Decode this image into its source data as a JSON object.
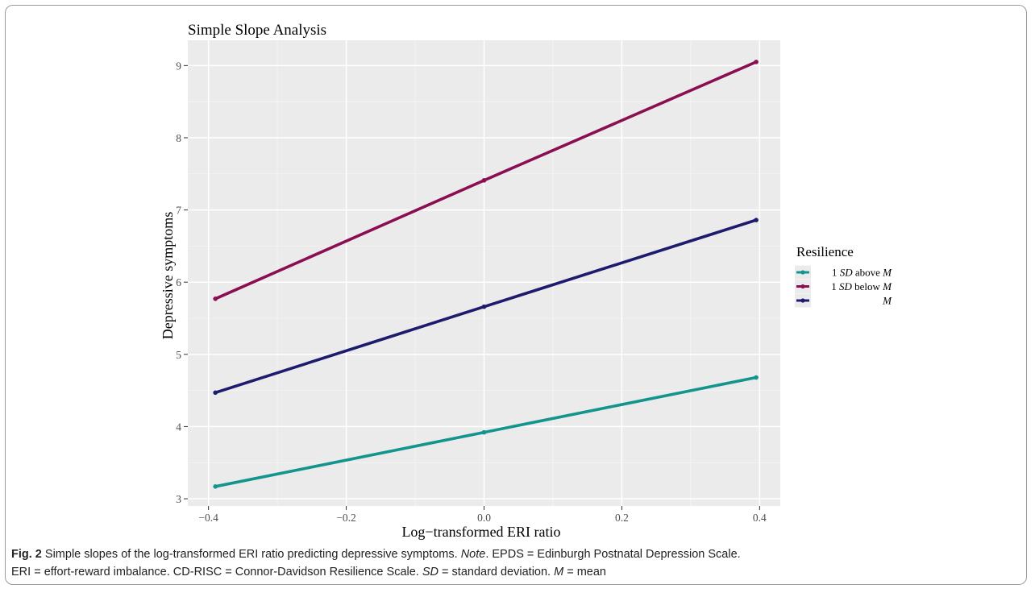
{
  "chart_data": {
    "type": "line",
    "title": "Simple Slope Analysis",
    "xlabel": "Log−transformed ERI ratio",
    "ylabel": "Depressive symptoms",
    "xlim": [
      -0.43,
      0.43
    ],
    "ylim": [
      2.9,
      9.35
    ],
    "x_ticks": [
      -0.4,
      -0.2,
      0.0,
      0.2,
      0.4
    ],
    "x_tick_labels": [
      "−0.4",
      "−0.2",
      "0.0",
      "0.2",
      "0.4"
    ],
    "y_ticks": [
      3,
      4,
      5,
      6,
      7,
      8,
      9
    ],
    "y_tick_labels": [
      "3",
      "4",
      "5",
      "6",
      "7",
      "8",
      "9"
    ],
    "x": [
      -0.39,
      0.0,
      0.395
    ],
    "grid": true,
    "legend_position": "right",
    "legend_title": "Resilience",
    "series": [
      {
        "name": "1 SD above M",
        "name_parts": [
          "1 ",
          "SD",
          " above ",
          "M"
        ],
        "color": "#14948f",
        "values": [
          3.17,
          3.92,
          4.68
        ]
      },
      {
        "name": "1 SD below M",
        "name_parts": [
          "1 ",
          "SD",
          " below ",
          "M"
        ],
        "color": "#8c0e52",
        "values": [
          5.77,
          7.41,
          9.05
        ]
      },
      {
        "name": "M",
        "name_parts": [
          "",
          "",
          "",
          "M"
        ],
        "color": "#1d1b6e",
        "values": [
          4.47,
          5.66,
          6.86
        ]
      }
    ]
  },
  "caption": {
    "fig_label": "Fig. 2",
    "part1": "Simple slopes of the log-transformed ERI ratio predicting depressive symptoms. ",
    "note": "Note",
    "part2": ". EPDS = Edinburgh Postnatal Depression Scale.",
    "part3": "ERI = effort-reward imbalance. CD-RISC = Connor-Davidson Resilience Scale. ",
    "sd": "SD",
    "part4": " = standard deviation. ",
    "m": "M",
    "part5": " = mean"
  }
}
